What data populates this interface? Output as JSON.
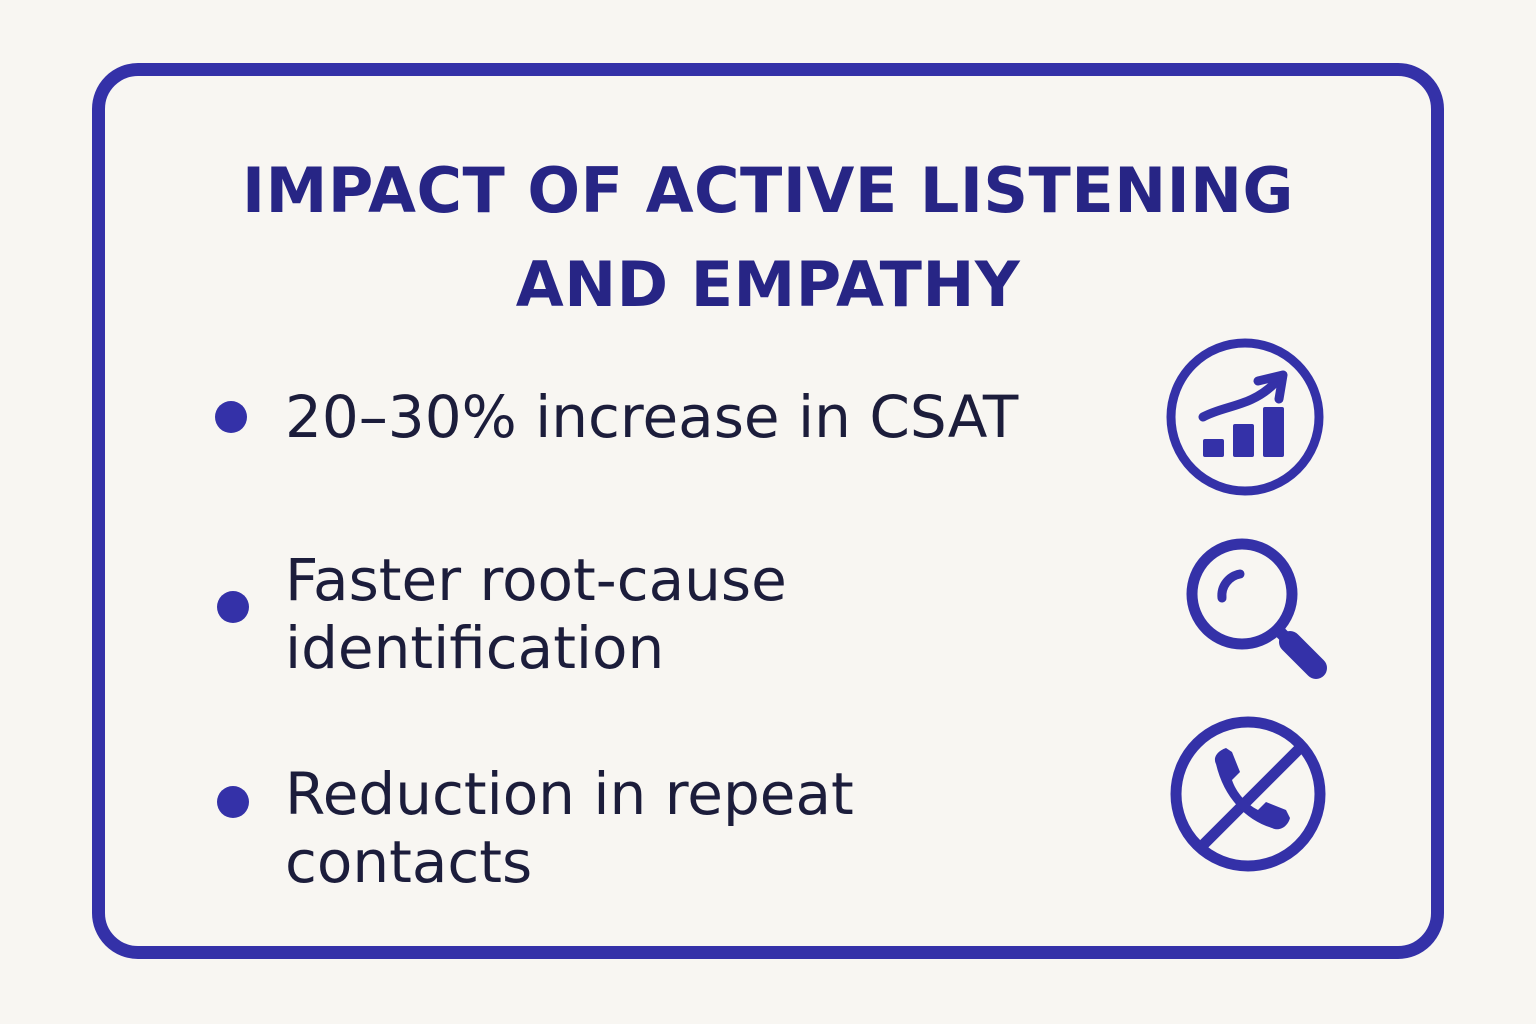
{
  "title_line_1": "IMPACT OF ACTIVE LISTENING",
  "title_line_2": "AND EMPATHY",
  "items": [
    {
      "lines": [
        "20–30% increase in CSAT"
      ],
      "icon": "bar-chart-growth-icon"
    },
    {
      "lines": [
        "Faster root-cause",
        "identification"
      ],
      "icon": "magnifying-glass-icon"
    },
    {
      "lines": [
        "Reduction in repeat",
        "contacts"
      ],
      "icon": "no-phone-call-icon"
    }
  ],
  "colors": {
    "background": "#f8f6f2",
    "accent": "#3431a8",
    "title": "#272585",
    "text": "#1c1d3b"
  }
}
